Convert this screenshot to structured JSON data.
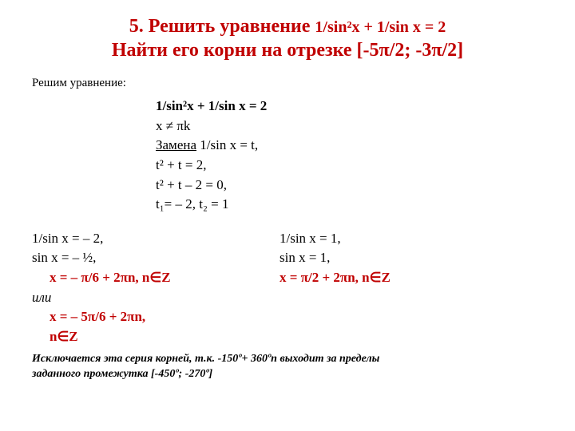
{
  "title": {
    "line1_prefix": "5. Решить уравнение ",
    "line1_eq": "1/sin²x + 1/sin x = 2",
    "line2": "Найти его корни на отрезке [-5π/2; -3π/2]"
  },
  "intro": "Решим уравнение:",
  "work": {
    "eq1": "1/sin²x + 1/sin x = 2",
    "cond": "x ≠ πk",
    "sub_label": "Замена",
    "sub_rest": " 1/sin x = t,",
    "l3": "t² + t = 2,",
    "l4": "t² + t – 2 = 0,",
    "l5": "t₁= – 2, t₂ = 1"
  },
  "left": {
    "r1": "1/sin x = – 2,",
    "r2": "sin x = – ½,",
    "r3": "x = – π/6 + 2πn, n∈Z",
    "or": "или",
    "r4a": "x = – 5π/6 + 2πn,",
    "r4b": "n∈Z"
  },
  "right": {
    "r1": "1/sin x = 1,",
    "r2": "sin x = 1,",
    "r3": "x = π/2 + 2πn, n∈Z"
  },
  "exclude": {
    "l1": "Исключается эта серия корней, т.к. -150º+ 360ºn выходит за пределы",
    "l2": "заданного промежутка [-450º; -270º]"
  },
  "colors": {
    "accent": "#c00000",
    "text": "#000000",
    "bg": "#ffffff"
  }
}
